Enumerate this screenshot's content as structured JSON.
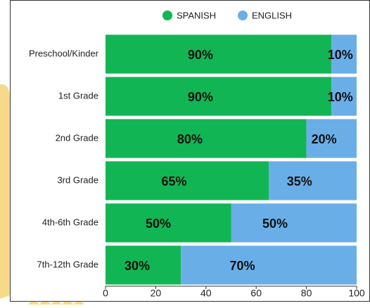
{
  "chart_data": {
    "type": "stacked_barh",
    "categories": [
      "Preschool/Kinder",
      "1st Grade",
      "2nd Grade",
      "3rd Grade",
      "4th-6th Grade",
      "7th-12th Grade"
    ],
    "series": [
      {
        "name": "SPANISH",
        "color": "#12b553",
        "values": [
          90,
          90,
          80,
          65,
          50,
          30
        ],
        "value_labels": [
          "90%",
          "90%",
          "80%",
          "65%",
          "50%",
          "30%"
        ]
      },
      {
        "name": "ENGLISH",
        "color": "#6aaee8",
        "values": [
          10,
          10,
          20,
          35,
          50,
          70
        ],
        "value_labels": [
          "10%",
          "10%",
          "20%",
          "35%",
          "50%",
          "70%"
        ]
      }
    ],
    "xlim": [
      0,
      100
    ],
    "xticks": [
      0,
      20,
      40,
      60,
      80,
      100
    ],
    "grid": false,
    "legend": "top"
  }
}
